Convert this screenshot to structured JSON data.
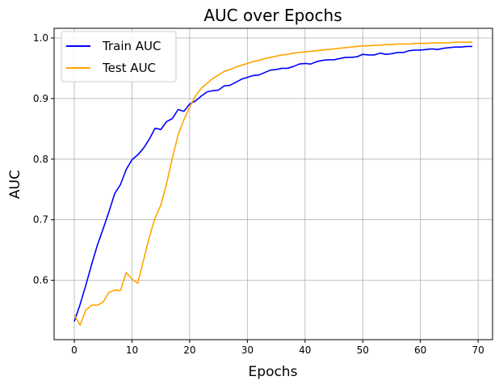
{
  "chart_data": {
    "type": "line",
    "title": "AUC over Epochs",
    "xlabel": "Epochs",
    "ylabel": "AUC",
    "xlim": [
      -3.5,
      72.5
    ],
    "ylim": [
      0.502,
      1.016
    ],
    "xticks": [
      0,
      10,
      20,
      30,
      40,
      50,
      60,
      70
    ],
    "yticks": [
      0.6,
      0.7,
      0.8,
      0.9,
      1.0
    ],
    "ytick_labels": [
      "0.6",
      "0.7",
      "0.8",
      "0.9",
      "1.0"
    ],
    "grid": true,
    "legend_position": "upper-left",
    "x": [
      0,
      1,
      2,
      3,
      4,
      5,
      6,
      7,
      8,
      9,
      10,
      11,
      12,
      13,
      14,
      15,
      16,
      17,
      18,
      19,
      20,
      21,
      22,
      23,
      24,
      25,
      26,
      27,
      28,
      29,
      30,
      31,
      32,
      33,
      34,
      35,
      36,
      37,
      38,
      39,
      40,
      41,
      42,
      43,
      44,
      45,
      46,
      47,
      48,
      49,
      50,
      51,
      52,
      53,
      54,
      55,
      56,
      57,
      58,
      59,
      60,
      61,
      62,
      63,
      64,
      65,
      66,
      67,
      68,
      69
    ],
    "series": [
      {
        "name": "Train AUC",
        "color": "#0000ff",
        "values": [
          0.532,
          0.56,
          0.592,
          0.626,
          0.658,
          0.685,
          0.713,
          0.743,
          0.758,
          0.783,
          0.799,
          0.807,
          0.818,
          0.833,
          0.851,
          0.849,
          0.862,
          0.867,
          0.882,
          0.879,
          0.891,
          0.896,
          0.904,
          0.911,
          0.913,
          0.914,
          0.921,
          0.922,
          0.927,
          0.932,
          0.935,
          0.938,
          0.939,
          0.943,
          0.947,
          0.948,
          0.95,
          0.95,
          0.953,
          0.957,
          0.958,
          0.957,
          0.961,
          0.963,
          0.964,
          0.964,
          0.966,
          0.968,
          0.968,
          0.969,
          0.973,
          0.972,
          0.972,
          0.975,
          0.973,
          0.974,
          0.976,
          0.976,
          0.979,
          0.98,
          0.98,
          0.981,
          0.982,
          0.981,
          0.983,
          0.984,
          0.985,
          0.985,
          0.986,
          0.986
        ]
      },
      {
        "name": "Test AUC",
        "color": "#ffa500",
        "values": [
          0.543,
          0.526,
          0.551,
          0.559,
          0.559,
          0.564,
          0.58,
          0.584,
          0.583,
          0.613,
          0.602,
          0.595,
          0.633,
          0.671,
          0.703,
          0.724,
          0.76,
          0.802,
          0.84,
          0.865,
          0.886,
          0.904,
          0.917,
          0.925,
          0.933,
          0.939,
          0.945,
          0.948,
          0.952,
          0.955,
          0.958,
          0.961,
          0.963,
          0.966,
          0.968,
          0.97,
          0.972,
          0.973,
          0.975,
          0.976,
          0.977,
          0.978,
          0.979,
          0.98,
          0.981,
          0.982,
          0.983,
          0.984,
          0.985,
          0.986,
          0.987,
          0.987,
          0.988,
          0.988,
          0.989,
          0.989,
          0.99,
          0.99,
          0.99,
          0.991,
          0.991,
          0.991,
          0.992,
          0.992,
          0.992,
          0.992,
          0.993,
          0.993,
          0.993,
          0.993
        ]
      }
    ]
  }
}
